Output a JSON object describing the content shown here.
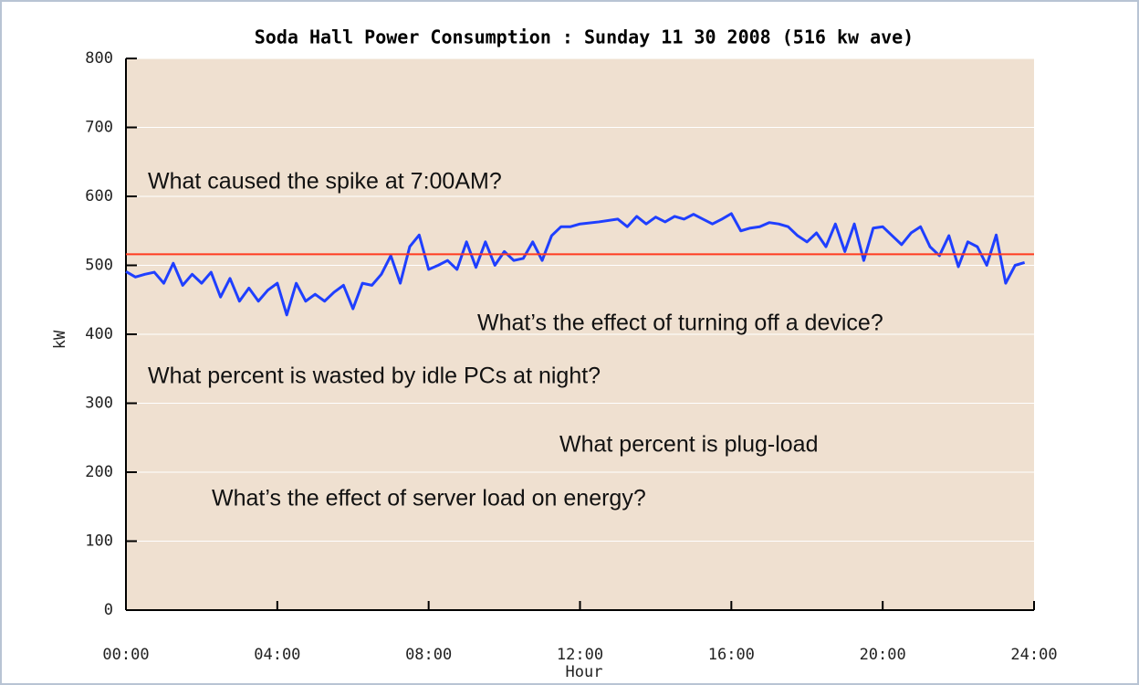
{
  "chart_data": {
    "type": "line",
    "title": "Soda Hall Power Consumption : Sunday 11 30 2008 (516 kw ave)",
    "xlabel": "Hour",
    "ylabel": "kW",
    "x": [
      0,
      0.25,
      0.5,
      0.75,
      1,
      1.25,
      1.5,
      1.75,
      2,
      2.25,
      2.5,
      2.75,
      3,
      3.25,
      3.5,
      3.75,
      4,
      4.25,
      4.5,
      4.75,
      5,
      5.25,
      5.5,
      5.75,
      6,
      6.25,
      6.5,
      6.75,
      7,
      7.25,
      7.5,
      7.75,
      8,
      8.25,
      8.5,
      8.75,
      9,
      9.25,
      9.5,
      9.75,
      10,
      10.25,
      10.5,
      10.75,
      11,
      11.25,
      11.5,
      11.75,
      12,
      12.5,
      13,
      13.25,
      13.5,
      13.75,
      14,
      14.25,
      14.5,
      14.75,
      15,
      15.25,
      15.5,
      15.75,
      16,
      16.25,
      16.5,
      16.75,
      17,
      17.25,
      17.5,
      17.75,
      18,
      18.25,
      18.5,
      18.75,
      19,
      19.25,
      19.5,
      19.75,
      20,
      20.25,
      20.5,
      20.75,
      21,
      21.25,
      21.5,
      21.75,
      22,
      22.25,
      22.5,
      22.75,
      23,
      23.25,
      23.5,
      23.75
    ],
    "series": [
      {
        "name": "kW",
        "color": "#1f3fff",
        "values": [
          491,
          483,
          487,
          490,
          474,
          503,
          471,
          487,
          474,
          490,
          454,
          481,
          448,
          467,
          448,
          464,
          474,
          428,
          474,
          448,
          458,
          448,
          461,
          471,
          437,
          474,
          471,
          487,
          514,
          474,
          527,
          544,
          494,
          500,
          507,
          494,
          534,
          497,
          534,
          500,
          520,
          507,
          510,
          534,
          507,
          543,
          556,
          556,
          560,
          563,
          567,
          556,
          571,
          560,
          570,
          563,
          571,
          567,
          574,
          567,
          560,
          567,
          575,
          550,
          554,
          556,
          562,
          560,
          556,
          543,
          534,
          547,
          527,
          560,
          520,
          560,
          507,
          554,
          556,
          543,
          530,
          547,
          556,
          527,
          514,
          543,
          498,
          534,
          527,
          500,
          544,
          474,
          500,
          504
        ]
      }
    ],
    "average": 516,
    "average_color": "#ff3b1f",
    "xlim": [
      0,
      24
    ],
    "xticks": [
      {
        "value": 0,
        "label": "00:00"
      },
      {
        "value": 4,
        "label": "04:00"
      },
      {
        "value": 8,
        "label": "08:00"
      },
      {
        "value": 12,
        "label": "12:00"
      },
      {
        "value": 16,
        "label": "16:00"
      },
      {
        "value": 20,
        "label": "20:00"
      },
      {
        "value": 24,
        "label": "24:00"
      }
    ],
    "ylim": [
      0,
      800
    ],
    "yticks": [
      0,
      100,
      200,
      300,
      400,
      500,
      600,
      700,
      800
    ],
    "grid": true,
    "annotations": [
      "What caused the spike at 7:00AM?",
      "What’s the effect of turning off a device?",
      "What percent is wasted by idle PCs at night?",
      "What percent is plug-load",
      "What’s the effect of server load on energy?"
    ]
  }
}
